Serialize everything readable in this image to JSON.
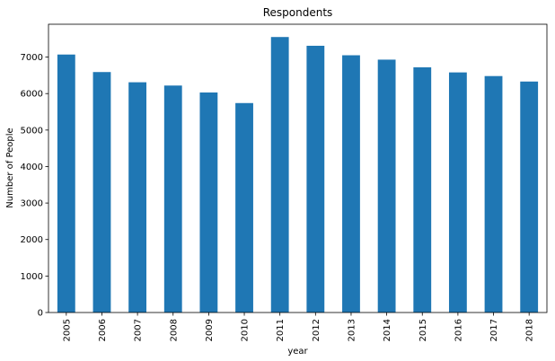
{
  "chart_data": {
    "type": "bar",
    "title": "Respondents",
    "xlabel": "year",
    "ylabel": "Number of People",
    "categories": [
      "2005",
      "2006",
      "2007",
      "2008",
      "2009",
      "2010",
      "2011",
      "2012",
      "2013",
      "2014",
      "2015",
      "2016",
      "2017",
      "2018"
    ],
    "values": [
      7070,
      6590,
      6310,
      6220,
      6030,
      5740,
      7550,
      7310,
      7050,
      6930,
      6720,
      6580,
      6480,
      6330
    ],
    "ylim": [
      0,
      7900
    ],
    "yticks": [
      "0",
      "1000",
      "2000",
      "3000",
      "4000",
      "5000",
      "6000",
      "7000"
    ],
    "bar_color": "#1f77b4",
    "grid": false,
    "legend": false
  }
}
